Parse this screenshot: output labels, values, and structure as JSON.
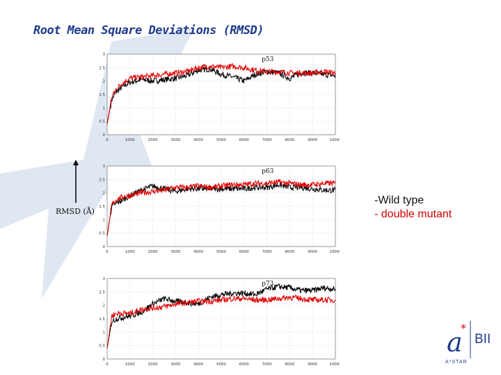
{
  "slide": {
    "title": "Root Mean Square Deviations (RMSD)",
    "ylabel": "RMSD (Å)",
    "legend": {
      "wild": "-Wild type",
      "mutant": "- double mutant"
    },
    "logo": {
      "text": "BII",
      "subtitle": "A*STAR"
    }
  },
  "colors": {
    "wild": "#000000",
    "mutant": "#e00000",
    "title": "#1f3a8a",
    "star": "#dfe7f2"
  },
  "chart_data": [
    {
      "type": "line",
      "title": "p53",
      "xlim": [
        0,
        10000
      ],
      "ylim": [
        0,
        3
      ],
      "xticks": [
        "0",
        "1000",
        "2000",
        "3000",
        "4000",
        "5000",
        "6000",
        "7000",
        "8000",
        "9000",
        "10000"
      ],
      "yticks": [
        "0",
        "0.5",
        "1",
        "1.5",
        "2",
        "2.5",
        "3"
      ],
      "grid": true,
      "series": [
        {
          "key": "wild",
          "x": [
            0,
            200,
            400,
            700,
            1000,
            1500,
            2000,
            2500,
            3000,
            3500,
            4000,
            4500,
            5000,
            5500,
            6000,
            6500,
            7000,
            7500,
            8000,
            8500,
            9000,
            9500,
            10000
          ],
          "y": [
            0.4,
            1.3,
            1.6,
            1.8,
            1.95,
            2.05,
            2.0,
            2.05,
            2.1,
            2.2,
            2.4,
            2.45,
            2.25,
            2.15,
            2.0,
            2.25,
            2.35,
            2.3,
            2.1,
            2.3,
            2.3,
            2.25,
            2.2
          ]
        },
        {
          "key": "mutant",
          "x": [
            0,
            200,
            400,
            700,
            1000,
            1500,
            2000,
            2500,
            3000,
            3500,
            4000,
            4500,
            5000,
            5500,
            6000,
            6500,
            7000,
            7500,
            8000,
            8500,
            9000,
            9500,
            10000
          ],
          "y": [
            0.4,
            1.4,
            1.7,
            1.95,
            2.1,
            2.15,
            2.2,
            2.25,
            2.3,
            2.35,
            2.5,
            2.55,
            2.5,
            2.55,
            2.5,
            2.4,
            2.35,
            2.35,
            2.3,
            2.3,
            2.3,
            2.35,
            2.3
          ]
        }
      ]
    },
    {
      "type": "line",
      "title": "p63",
      "xlim": [
        0,
        10000
      ],
      "ylim": [
        0,
        3
      ],
      "xticks": [
        "0",
        "1000",
        "2000",
        "3000",
        "4000",
        "5000",
        "6000",
        "7000",
        "8000",
        "9000",
        "10000"
      ],
      "yticks": [
        "0",
        "0.5",
        "1",
        "1.5",
        "2",
        "2.5",
        "3"
      ],
      "grid": true,
      "series": [
        {
          "key": "wild",
          "x": [
            0,
            200,
            400,
            700,
            1000,
            1500,
            2000,
            2500,
            3000,
            3500,
            4000,
            4500,
            5000,
            5500,
            6000,
            6500,
            7000,
            7500,
            8000,
            8500,
            9000,
            9500,
            10000
          ],
          "y": [
            0.4,
            1.5,
            1.6,
            1.75,
            1.9,
            2.1,
            2.25,
            2.15,
            2.05,
            2.15,
            2.15,
            2.15,
            2.15,
            2.15,
            2.15,
            2.2,
            2.2,
            2.3,
            2.2,
            2.2,
            2.15,
            2.1,
            2.1
          ]
        },
        {
          "key": "mutant",
          "x": [
            0,
            200,
            400,
            700,
            1000,
            1500,
            2000,
            2500,
            3000,
            3500,
            4000,
            4500,
            5000,
            5500,
            6000,
            6500,
            7000,
            7500,
            8000,
            8500,
            9000,
            9500,
            10000
          ],
          "y": [
            0.4,
            1.55,
            1.75,
            1.85,
            1.9,
            2.0,
            2.05,
            2.1,
            2.2,
            2.2,
            2.25,
            2.2,
            2.25,
            2.3,
            2.3,
            2.35,
            2.35,
            2.4,
            2.35,
            2.3,
            2.3,
            2.35,
            2.35
          ]
        }
      ]
    },
    {
      "type": "line",
      "title": "p73",
      "xlim": [
        0,
        10000
      ],
      "ylim": [
        0,
        3
      ],
      "xticks": [
        "0",
        "1000",
        "2000",
        "3000",
        "4000",
        "5000",
        "6000",
        "7000",
        "8000",
        "9000",
        "10000"
      ],
      "yticks": [
        "0",
        "0.5",
        "1",
        "1.5",
        "2",
        "2.5",
        "3"
      ],
      "grid": true,
      "series": [
        {
          "key": "wild",
          "x": [
            0,
            200,
            400,
            700,
            1000,
            1500,
            2000,
            2500,
            3000,
            3500,
            4000,
            4500,
            5000,
            5500,
            6000,
            6500,
            7000,
            7500,
            8000,
            8500,
            9000,
            9500,
            10000
          ],
          "y": [
            0.4,
            1.4,
            1.5,
            1.55,
            1.6,
            1.75,
            2.05,
            2.25,
            2.15,
            2.1,
            2.05,
            2.3,
            2.4,
            2.45,
            2.45,
            2.4,
            2.6,
            2.7,
            2.65,
            2.55,
            2.55,
            2.65,
            2.6
          ]
        },
        {
          "key": "mutant",
          "x": [
            0,
            200,
            400,
            700,
            1000,
            1500,
            2000,
            2500,
            3000,
            3500,
            4000,
            4500,
            5000,
            5500,
            6000,
            6500,
            7000,
            7500,
            8000,
            8500,
            9000,
            9500,
            10000
          ],
          "y": [
            0.4,
            1.6,
            1.7,
            1.7,
            1.7,
            1.85,
            1.9,
            1.95,
            2.05,
            2.1,
            2.15,
            2.15,
            2.2,
            2.25,
            2.25,
            2.2,
            2.2,
            2.25,
            2.3,
            2.25,
            2.2,
            2.2,
            2.2
          ]
        }
      ]
    }
  ]
}
